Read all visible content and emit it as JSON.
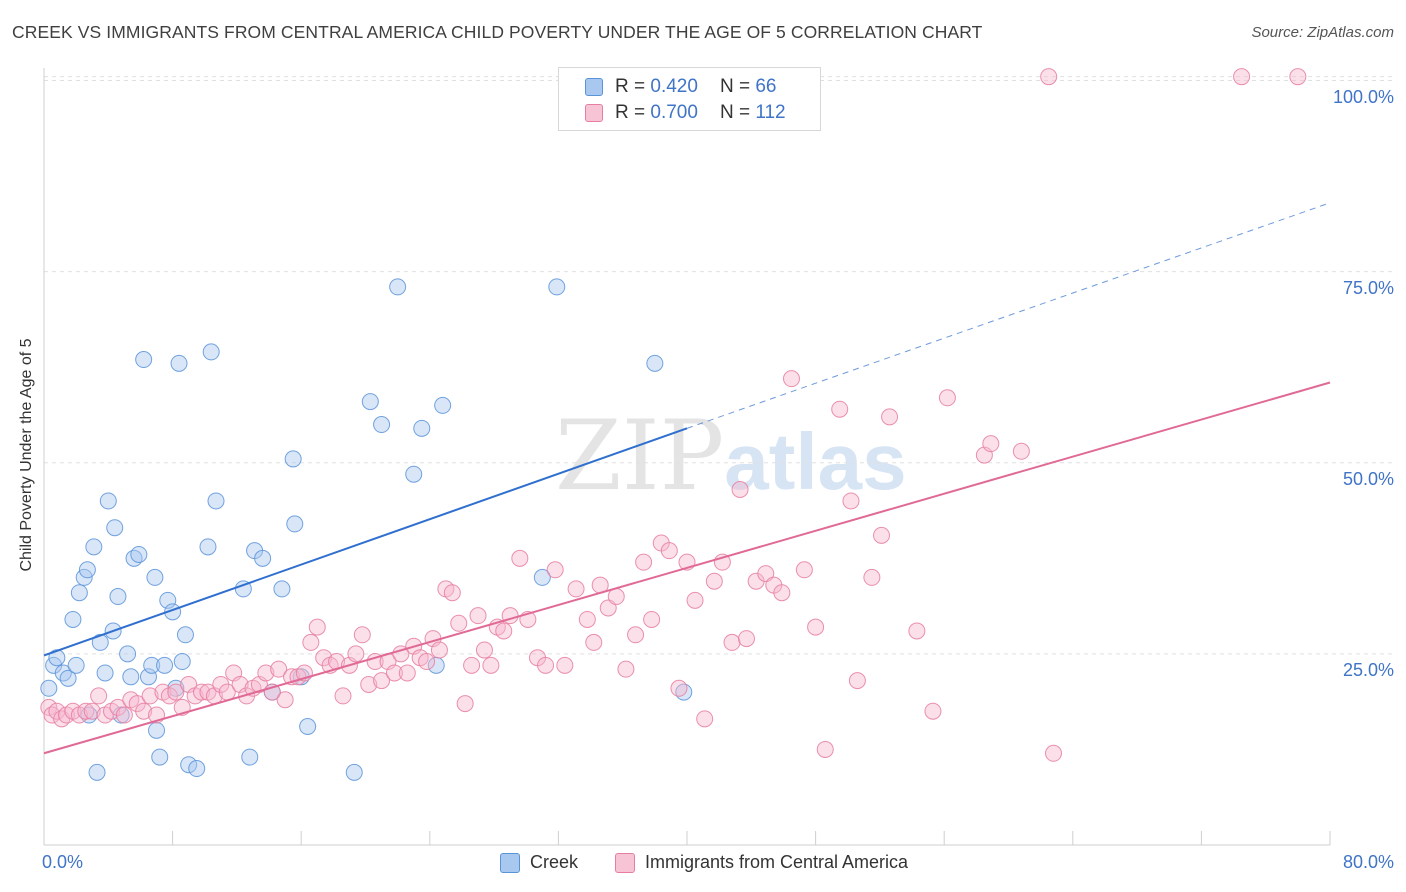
{
  "title": "CREEK VS IMMIGRANTS FROM CENTRAL AMERICA CHILD POVERTY UNDER THE AGE OF 5 CORRELATION CHART",
  "source": "Source: ZipAtlas.com",
  "watermark": {
    "part1": "ZIP",
    "part2": "atlas"
  },
  "colors": {
    "creek": "#5b93d9",
    "creek_fill": "#a9c8f0",
    "immigrants": "#e67ea0",
    "immigrants_fill": "#f7b9ce",
    "creek_line": "#2f6fcf",
    "immigrants_line": "#e06a95",
    "tick_text": "#3f74c7",
    "grid": "#e0e0e0"
  },
  "legend_top": {
    "rows": [
      {
        "r_label": "R = ",
        "r_value": "0.420",
        "n_label": "N = ",
        "n_value": "66"
      },
      {
        "r_label": "R = ",
        "r_value": "0.700",
        "n_label": "N = ",
        "n_value": "112"
      }
    ]
  },
  "legend_bottom": {
    "creek": "Creek",
    "immigrants": "Immigrants from Central America"
  },
  "chart_data": {
    "type": "scatter",
    "title": "CREEK VS IMMIGRANTS FROM CENTRAL AMERICA CHILD POVERTY UNDER THE AGE OF 5 CORRELATION CHART",
    "xlabel": "",
    "ylabel": "Child Poverty Under the Age of 5",
    "xlim": [
      0,
      80
    ],
    "ylim": [
      0,
      102
    ],
    "x_tick_labels": [
      "0.0%",
      "80.0%"
    ],
    "y_tick_labels": [
      "25.0%",
      "50.0%",
      "75.0%",
      "100.0%"
    ],
    "y_ticks": [
      25,
      50,
      75,
      100
    ],
    "grid": true,
    "legend_position": "top-center",
    "series": [
      {
        "name": "Creek",
        "r": 0.42,
        "n": 66,
        "trend": {
          "x0": 0,
          "y0": 24.8,
          "x1": 40,
          "y1": 54.5,
          "dashed_to_x": 80,
          "dashed_to_y": 84.0
        },
        "points": [
          [
            0.3,
            20.5
          ],
          [
            0.6,
            23.5
          ],
          [
            0.8,
            24.5
          ],
          [
            1.2,
            22.5
          ],
          [
            1.5,
            21.8
          ],
          [
            1.8,
            29.5
          ],
          [
            2.0,
            23.5
          ],
          [
            2.2,
            33.0
          ],
          [
            2.5,
            35.0
          ],
          [
            2.7,
            36.0
          ],
          [
            2.8,
            17.0
          ],
          [
            3.1,
            39.0
          ],
          [
            3.3,
            9.5
          ],
          [
            3.5,
            26.5
          ],
          [
            3.8,
            22.5
          ],
          [
            4.0,
            45.0
          ],
          [
            4.3,
            28.0
          ],
          [
            4.4,
            41.5
          ],
          [
            4.6,
            32.5
          ],
          [
            4.8,
            17.0
          ],
          [
            5.2,
            25.0
          ],
          [
            5.4,
            22.0
          ],
          [
            5.6,
            37.5
          ],
          [
            5.9,
            38.0
          ],
          [
            6.2,
            63.5
          ],
          [
            6.5,
            22.0
          ],
          [
            6.7,
            23.5
          ],
          [
            6.9,
            35.0
          ],
          [
            7.0,
            15.0
          ],
          [
            7.2,
            11.5
          ],
          [
            7.5,
            23.5
          ],
          [
            7.7,
            32.0
          ],
          [
            8.0,
            30.5
          ],
          [
            8.2,
            20.5
          ],
          [
            8.4,
            63.0
          ],
          [
            8.6,
            24.0
          ],
          [
            8.8,
            27.5
          ],
          [
            9.0,
            10.5
          ],
          [
            9.5,
            10.0
          ],
          [
            10.2,
            39.0
          ],
          [
            10.4,
            64.5
          ],
          [
            10.7,
            45.0
          ],
          [
            12.4,
            33.5
          ],
          [
            12.8,
            11.5
          ],
          [
            13.1,
            38.5
          ],
          [
            13.6,
            37.5
          ],
          [
            14.2,
            20.0
          ],
          [
            14.8,
            33.5
          ],
          [
            15.5,
            50.5
          ],
          [
            15.6,
            42.0
          ],
          [
            16.0,
            22.0
          ],
          [
            16.4,
            15.5
          ],
          [
            19.3,
            9.5
          ],
          [
            20.3,
            58.0
          ],
          [
            21.0,
            55.0
          ],
          [
            22.0,
            73.0
          ],
          [
            23.0,
            48.5
          ],
          [
            23.5,
            54.5
          ],
          [
            24.4,
            23.5
          ],
          [
            24.8,
            57.5
          ],
          [
            31.0,
            35.0
          ],
          [
            31.9,
            73.0
          ],
          [
            38.0,
            63.0
          ],
          [
            39.8,
            20.0
          ]
        ]
      },
      {
        "name": "Immigrants from Central America",
        "r": 0.7,
        "n": 112,
        "trend": {
          "x0": 0,
          "y0": 12.0,
          "x1": 80,
          "y1": 60.5
        },
        "points": [
          [
            0.3,
            18.0
          ],
          [
            0.5,
            17.0
          ],
          [
            0.8,
            17.5
          ],
          [
            1.1,
            16.5
          ],
          [
            1.4,
            17.0
          ],
          [
            1.8,
            17.5
          ],
          [
            2.2,
            17.0
          ],
          [
            2.6,
            17.5
          ],
          [
            3.0,
            17.5
          ],
          [
            3.4,
            19.5
          ],
          [
            3.8,
            17.0
          ],
          [
            4.2,
            17.5
          ],
          [
            4.6,
            18.0
          ],
          [
            5.0,
            17.0
          ],
          [
            5.4,
            19.0
          ],
          [
            5.8,
            18.5
          ],
          [
            6.2,
            17.5
          ],
          [
            6.6,
            19.5
          ],
          [
            7.0,
            17.0
          ],
          [
            7.4,
            20.0
          ],
          [
            7.8,
            19.5
          ],
          [
            8.2,
            20.0
          ],
          [
            8.6,
            18.0
          ],
          [
            9.0,
            21.0
          ],
          [
            9.4,
            19.5
          ],
          [
            9.8,
            20.0
          ],
          [
            10.2,
            20.0
          ],
          [
            10.6,
            19.5
          ],
          [
            11.0,
            21.0
          ],
          [
            11.4,
            20.0
          ],
          [
            11.8,
            22.5
          ],
          [
            12.2,
            21.0
          ],
          [
            12.6,
            19.5
          ],
          [
            13.0,
            20.5
          ],
          [
            13.4,
            21.0
          ],
          [
            13.8,
            22.5
          ],
          [
            14.2,
            20.0
          ],
          [
            14.6,
            23.0
          ],
          [
            15.0,
            19.0
          ],
          [
            15.4,
            22.0
          ],
          [
            15.8,
            22.0
          ],
          [
            16.2,
            22.5
          ],
          [
            16.6,
            26.5
          ],
          [
            17.0,
            28.5
          ],
          [
            17.4,
            24.5
          ],
          [
            17.8,
            23.5
          ],
          [
            18.2,
            24.0
          ],
          [
            18.6,
            19.5
          ],
          [
            19.0,
            23.5
          ],
          [
            19.4,
            25.0
          ],
          [
            19.8,
            27.5
          ],
          [
            20.2,
            21.0
          ],
          [
            20.6,
            24.0
          ],
          [
            21.0,
            21.5
          ],
          [
            21.4,
            24.0
          ],
          [
            21.8,
            22.5
          ],
          [
            22.2,
            25.0
          ],
          [
            22.6,
            22.5
          ],
          [
            23.0,
            26.0
          ],
          [
            23.4,
            24.5
          ],
          [
            23.8,
            24.0
          ],
          [
            24.2,
            27.0
          ],
          [
            24.6,
            25.5
          ],
          [
            25.0,
            33.5
          ],
          [
            25.4,
            33.0
          ],
          [
            25.8,
            29.0
          ],
          [
            26.2,
            18.5
          ],
          [
            26.6,
            23.5
          ],
          [
            27.0,
            30.0
          ],
          [
            27.4,
            25.5
          ],
          [
            27.8,
            23.5
          ],
          [
            28.2,
            28.5
          ],
          [
            28.6,
            28.0
          ],
          [
            29.0,
            30.0
          ],
          [
            29.6,
            37.5
          ],
          [
            30.1,
            29.5
          ],
          [
            30.7,
            24.5
          ],
          [
            31.2,
            23.5
          ],
          [
            31.8,
            36.0
          ],
          [
            32.4,
            23.5
          ],
          [
            33.1,
            33.5
          ],
          [
            33.8,
            29.5
          ],
          [
            34.2,
            26.5
          ],
          [
            34.6,
            34.0
          ],
          [
            35.1,
            31.0
          ],
          [
            35.6,
            32.5
          ],
          [
            36.2,
            23.0
          ],
          [
            36.8,
            27.5
          ],
          [
            37.3,
            37.0
          ],
          [
            37.8,
            29.5
          ],
          [
            38.4,
            39.5
          ],
          [
            38.9,
            38.5
          ],
          [
            39.5,
            20.5
          ],
          [
            40.0,
            37.0
          ],
          [
            40.5,
            32.0
          ],
          [
            41.1,
            16.5
          ],
          [
            41.7,
            34.5
          ],
          [
            42.2,
            37.0
          ],
          [
            42.8,
            26.5
          ],
          [
            43.3,
            46.5
          ],
          [
            43.7,
            27.0
          ],
          [
            44.3,
            34.5
          ],
          [
            44.9,
            35.5
          ],
          [
            45.4,
            34.0
          ],
          [
            45.9,
            33.0
          ],
          [
            46.5,
            61.0
          ],
          [
            47.3,
            36.0
          ],
          [
            48.0,
            28.5
          ],
          [
            48.6,
            12.5
          ],
          [
            49.5,
            57.0
          ],
          [
            50.2,
            45.0
          ],
          [
            50.6,
            21.5
          ],
          [
            51.5,
            35.0
          ],
          [
            52.1,
            40.5
          ],
          [
            52.6,
            56.0
          ],
          [
            54.3,
            28.0
          ],
          [
            55.3,
            17.5
          ],
          [
            56.2,
            58.5
          ],
          [
            58.5,
            51.0
          ],
          [
            58.9,
            52.5
          ],
          [
            60.8,
            51.5
          ],
          [
            62.5,
            100.5
          ],
          [
            62.8,
            12.0
          ],
          [
            74.5,
            100.5
          ],
          [
            78.0,
            100.5
          ]
        ]
      }
    ]
  }
}
